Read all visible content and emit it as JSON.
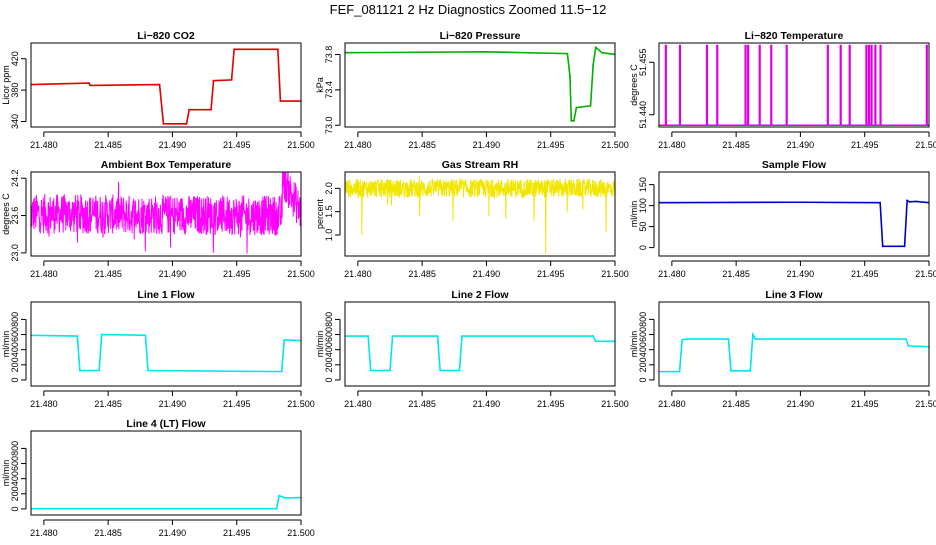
{
  "title": "FEF_081121  2 Hz Diagnostics Zoomed 11.5−12",
  "chart_data": [
    {
      "type": "line",
      "title": "Li−820 CO2",
      "ylabel": "Licor ppm",
      "color": "#e00000",
      "xlim": [
        21.479,
        21.5
      ],
      "ylim": [
        333,
        440
      ],
      "xticks": [
        "21.480",
        "21.485",
        "21.490",
        "21.495",
        "21.500"
      ],
      "xtick_values": [
        21.48,
        21.485,
        21.49,
        21.495,
        21.5
      ],
      "yticks": [
        "340",
        "380",
        "420"
      ],
      "ytick_values": [
        340,
        380,
        420
      ],
      "x": [
        21.479,
        21.4835,
        21.4836,
        21.489,
        21.4893,
        21.4911,
        21.4913,
        21.493,
        21.4932,
        21.4946,
        21.4948,
        21.4982,
        21.4984,
        21.5
      ],
      "values": [
        387,
        389,
        386,
        387,
        337,
        337,
        355,
        355,
        392,
        393,
        432,
        432,
        366,
        366
      ]
    },
    {
      "type": "line",
      "title": "Li−820 Pressure",
      "ylabel": "kPa",
      "color": "#00b000",
      "xlim": [
        21.479,
        21.5
      ],
      "ylim": [
        72.98,
        73.93
      ],
      "xticks": [
        "21.480",
        "21.485",
        "21.490",
        "21.495",
        "21.500"
      ],
      "xtick_values": [
        21.48,
        21.485,
        21.49,
        21.495,
        21.5
      ],
      "yticks": [
        "73.0",
        "73.4",
        "73.8"
      ],
      "ytick_values": [
        73.0,
        73.4,
        73.8
      ],
      "x": [
        21.479,
        21.49,
        21.4963,
        21.4965,
        21.4966,
        21.4968,
        21.497,
        21.4981,
        21.4983,
        21.4985,
        21.499,
        21.5
      ],
      "values": [
        73.82,
        73.83,
        73.81,
        73.55,
        73.05,
        73.05,
        73.2,
        73.22,
        73.68,
        73.88,
        73.82,
        73.8
      ]
    },
    {
      "type": "line",
      "title": "Li−820 Temperature",
      "ylabel": "degrees C",
      "color": "#e000e0",
      "xlim": [
        21.479,
        21.5
      ],
      "ylim": [
        51.4365,
        51.4605
      ],
      "xticks": [
        "21.480",
        "21.485",
        "21.490",
        "21.495",
        "21.500"
      ],
      "xtick_values": [
        21.48,
        21.485,
        21.49,
        21.495,
        21.5
      ],
      "yticks": [
        "51.440",
        "51.455"
      ],
      "ytick_values": [
        51.44,
        51.455
      ],
      "baseline": 51.437,
      "spike_top": 51.46,
      "spikes": [
        21.4795,
        21.4806,
        21.4827,
        21.4835,
        21.4857,
        21.4859,
        21.4868,
        21.4877,
        21.4889,
        21.4921,
        21.4931,
        21.4938,
        21.4951,
        21.4953,
        21.4955,
        21.4958,
        21.4962,
        21.4998
      ]
    },
    {
      "type": "line",
      "title": "Ambient Box Temperature",
      "ylabel": "degrees C",
      "color": "#ff00ff",
      "xlim": [
        21.479,
        21.5
      ],
      "ylim": [
        22.95,
        24.3
      ],
      "xticks": [
        "21.480",
        "21.485",
        "21.490",
        "21.495",
        "21.500"
      ],
      "xtick_values": [
        21.48,
        21.485,
        21.49,
        21.495,
        21.5
      ],
      "yticks": [
        "23.0",
        "23.6",
        "24.2"
      ],
      "ytick_values": [
        23.0,
        23.6,
        24.2
      ],
      "x": [
        21.479,
        21.4985,
        21.4986,
        21.5
      ],
      "values": [
        23.63,
        23.6,
        24.2,
        23.65
      ],
      "noise": 0.32
    },
    {
      "type": "line",
      "title": "Gas Stream RH",
      "ylabel": "percent",
      "color": "#f2e600",
      "xlim": [
        21.479,
        21.5
      ],
      "ylim": [
        0.55,
        2.35
      ],
      "xticks": [
        "21.480",
        "21.485",
        "21.490",
        "21.495",
        "21.500"
      ],
      "xtick_values": [
        21.48,
        21.485,
        21.49,
        21.495,
        21.5
      ],
      "yticks": [
        "1.0",
        "1.5",
        "2.0"
      ],
      "ytick_values": [
        1.0,
        1.5,
        2.0
      ],
      "x": [
        21.479,
        21.5
      ],
      "values": [
        2.0,
        2.0
      ],
      "noise": 0.2,
      "dips": [
        [
          21.4803,
          1.0
        ],
        [
          21.4848,
          1.4
        ],
        [
          21.4874,
          1.3
        ],
        [
          21.4902,
          1.4
        ],
        [
          21.4915,
          1.35
        ],
        [
          21.4937,
          1.3
        ],
        [
          21.4946,
          0.6
        ],
        [
          21.4963,
          1.5
        ],
        [
          21.4975,
          1.55
        ],
        [
          21.4993,
          1.05
        ]
      ]
    },
    {
      "type": "line",
      "title": "Sample Flow",
      "ylabel": "ml/min",
      "color": "#0000c0",
      "xlim": [
        21.479,
        21.5
      ],
      "ylim": [
        -20,
        180
      ],
      "xticks": [
        "21.480",
        "21.485",
        "21.490",
        "21.495",
        "21.500"
      ],
      "xtick_values": [
        21.48,
        21.485,
        21.49,
        21.495,
        21.5
      ],
      "yticks": [
        "0",
        "50",
        "100",
        "150"
      ],
      "ytick_values": [
        0,
        50,
        100,
        150
      ],
      "x": [
        21.479,
        21.49,
        21.4962,
        21.4964,
        21.4981,
        21.4983,
        21.4985,
        21.499,
        21.5
      ],
      "values": [
        107,
        108,
        107,
        3,
        3,
        112,
        109,
        110,
        107
      ]
    },
    {
      "type": "line",
      "title": "Line 1 Flow",
      "ylabel": "ml/min",
      "color": "#00e5ee",
      "xlim": [
        21.479,
        21.5
      ],
      "ylim": [
        -80,
        1030
      ],
      "xticks": [
        "21.480",
        "21.485",
        "21.490",
        "21.495",
        "21.500"
      ],
      "xtick_values": [
        21.48,
        21.485,
        21.49,
        21.495,
        21.5
      ],
      "yticks": [
        "0",
        "200",
        "400",
        "600",
        "800"
      ],
      "ytick_values": [
        0,
        200,
        400,
        600,
        800
      ],
      "x": [
        21.479,
        21.4826,
        21.4828,
        21.4843,
        21.4845,
        21.4879,
        21.4881,
        21.4985,
        21.4987,
        21.5
      ],
      "values": [
        590,
        580,
        125,
        125,
        600,
        590,
        125,
        110,
        530,
        520
      ]
    },
    {
      "type": "line",
      "title": "Line 2 Flow",
      "ylabel": "ml/min",
      "color": "#00e5ee",
      "xlim": [
        21.479,
        21.5
      ],
      "ylim": [
        -80,
        1030
      ],
      "xticks": [
        "21.480",
        "21.485",
        "21.490",
        "21.495",
        "21.500"
      ],
      "xtick_values": [
        21.48,
        21.485,
        21.49,
        21.495,
        21.5
      ],
      "yticks": [
        "0",
        "200",
        "400",
        "600",
        "800"
      ],
      "ytick_values": [
        0,
        200,
        400,
        600,
        800
      ],
      "x": [
        21.479,
        21.4808,
        21.481,
        21.4825,
        21.4827,
        21.4862,
        21.4864,
        21.4879,
        21.4881,
        21.4983,
        21.4985,
        21.5
      ],
      "values": [
        580,
        580,
        125,
        125,
        580,
        580,
        125,
        125,
        580,
        580,
        510,
        510
      ]
    },
    {
      "type": "line",
      "title": "Line 3 Flow",
      "ylabel": "ml/min",
      "color": "#00e5ee",
      "xlim": [
        21.479,
        21.5
      ],
      "ylim": [
        -80,
        1030
      ],
      "xticks": [
        "21.480",
        "21.485",
        "21.490",
        "21.495",
        "21.500"
      ],
      "xtick_values": [
        21.48,
        21.485,
        21.49,
        21.495,
        21.5
      ],
      "yticks": [
        "0",
        "200",
        "400",
        "600",
        "800"
      ],
      "ytick_values": [
        0,
        200,
        400,
        600,
        800
      ],
      "x": [
        21.479,
        21.4806,
        21.4808,
        21.4812,
        21.4844,
        21.4846,
        21.4861,
        21.4863,
        21.4865,
        21.4982,
        21.4984,
        21.5
      ],
      "values": [
        110,
        110,
        530,
        540,
        540,
        120,
        120,
        600,
        540,
        540,
        450,
        440
      ]
    },
    {
      "type": "line",
      "title": "Line 4 (LT) Flow",
      "ylabel": "ml/min",
      "color": "#00e5ee",
      "xlim": [
        21.479,
        21.5
      ],
      "ylim": [
        -80,
        1030
      ],
      "xticks": [
        "21.480",
        "21.485",
        "21.490",
        "21.495",
        "21.500"
      ],
      "xtick_values": [
        21.48,
        21.485,
        21.49,
        21.495,
        21.5
      ],
      "yticks": [
        "0",
        "200",
        "400",
        "600",
        "800"
      ],
      "ytick_values": [
        0,
        200,
        400,
        600,
        800
      ],
      "x": [
        21.479,
        21.4981,
        21.4983,
        21.4988,
        21.5
      ],
      "values": [
        3,
        3,
        175,
        145,
        150
      ]
    }
  ]
}
